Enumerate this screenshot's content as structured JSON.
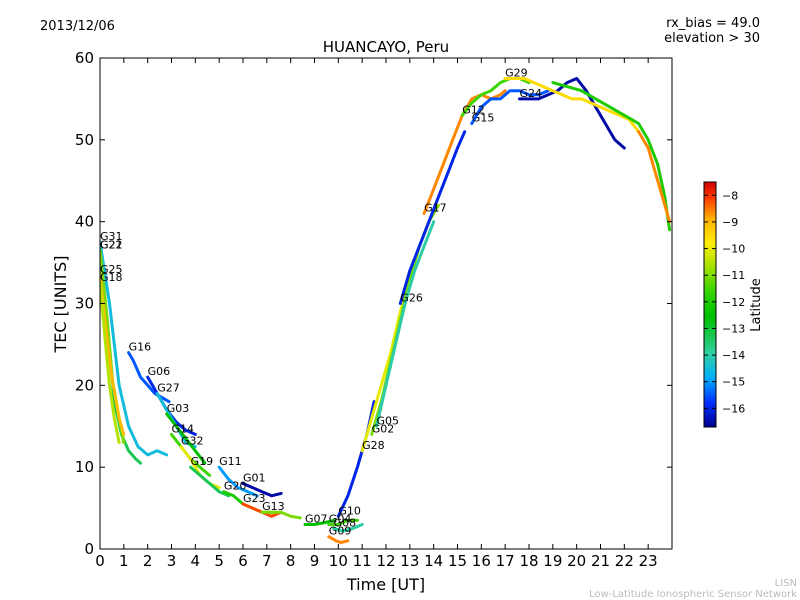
{
  "header": {
    "date": "2013/12/06",
    "meta_line1": "rx_bias = 49.0",
    "meta_line2": "elevation > 30"
  },
  "footer": {
    "line1": "LISN",
    "line2": "Low-Latitude Ionospheric Sensor Network"
  },
  "colors": {
    "background": "#ffffff",
    "axis": "#000000",
    "footer_text": "#bbbbbb",
    "colormap": [
      "#00008f",
      "#0030ff",
      "#00b0ff",
      "#2fcfa0",
      "#00c000",
      "#33d400",
      "#a0e000",
      "#ffee00",
      "#ffb000",
      "#ff4000",
      "#d00000"
    ]
  },
  "chart_data": {
    "type": "line",
    "title": "HUANCAYO, Peru",
    "xlabel": "Time [UT]",
    "ylabel": "TEC [UNITS]",
    "xlim": [
      0,
      24
    ],
    "ylim": [
      0,
      60
    ],
    "xticks": [
      0,
      1,
      2,
      3,
      4,
      5,
      6,
      7,
      8,
      9,
      10,
      11,
      12,
      13,
      14,
      15,
      16,
      17,
      18,
      19,
      20,
      21,
      22,
      23
    ],
    "yticks": [
      0,
      10,
      20,
      30,
      40,
      50,
      60
    ],
    "colorbar": {
      "label": "Latitude",
      "range": [
        -16.7,
        -7.5
      ],
      "ticks": [
        -8,
        -9,
        -10,
        -11,
        -12,
        -13,
        -14,
        -15,
        -16
      ],
      "tick_labels": [
        "−8",
        "−9",
        "−10",
        "−11",
        "−12",
        "−13",
        "−14",
        "−15",
        "−16"
      ]
    },
    "series": [
      {
        "name": "G31",
        "lat": -14.5,
        "points": [
          [
            0,
            37.5
          ],
          [
            0.4,
            30
          ],
          [
            0.8,
            20
          ],
          [
            1.2,
            15
          ],
          [
            1.6,
            12.5
          ],
          [
            2.0,
            11.5
          ],
          [
            2.4,
            12
          ],
          [
            2.8,
            11.5
          ]
        ]
      },
      {
        "name": "G21",
        "lat": -13.5,
        "points": [
          [
            0,
            36.5
          ],
          [
            0.3,
            28
          ],
          [
            0.6,
            18
          ],
          [
            0.9,
            14
          ],
          [
            1.2,
            12
          ],
          [
            1.5,
            11
          ],
          [
            1.7,
            10.5
          ]
        ]
      },
      {
        "name": "G22",
        "lat": -11.5,
        "points": [
          [
            0,
            36.5
          ],
          [
            0.3,
            28
          ],
          [
            0.5,
            21
          ],
          [
            0.8,
            16
          ],
          [
            1.0,
            13
          ]
        ]
      },
      {
        "name": "G25",
        "lat": -9.5,
        "points": [
          [
            0,
            33.5
          ],
          [
            0.2,
            28
          ],
          [
            0.5,
            21
          ],
          [
            0.8,
            16
          ],
          [
            1.0,
            14
          ]
        ]
      },
      {
        "name": "G18",
        "lat": -11.0,
        "points": [
          [
            0,
            32.5
          ],
          [
            0.2,
            26
          ],
          [
            0.4,
            20
          ],
          [
            0.6,
            16
          ],
          [
            0.8,
            13
          ]
        ]
      },
      {
        "name": "G16",
        "lat": -15.5,
        "points": [
          [
            1.2,
            24
          ],
          [
            1.4,
            23
          ],
          [
            1.7,
            21
          ],
          [
            2.0,
            20
          ],
          [
            2.3,
            19
          ],
          [
            2.6,
            18.5
          ],
          [
            2.9,
            18
          ]
        ]
      },
      {
        "name": "G06",
        "lat": -16.0,
        "points": [
          [
            2.0,
            21
          ],
          [
            2.4,
            19
          ],
          [
            2.8,
            17
          ],
          [
            3.2,
            15.5
          ],
          [
            3.6,
            14.5
          ],
          [
            4.0,
            14
          ]
        ]
      },
      {
        "name": "G27",
        "lat": -14.5,
        "points": [
          [
            2.4,
            19
          ],
          [
            2.8,
            17
          ],
          [
            3.2,
            15
          ],
          [
            3.6,
            13
          ],
          [
            4.0,
            12.5
          ]
        ]
      },
      {
        "name": "G03",
        "lat": -13.0,
        "points": [
          [
            2.8,
            16.5
          ],
          [
            3.2,
            15
          ],
          [
            3.6,
            13.5
          ],
          [
            4.0,
            12
          ],
          [
            4.4,
            10.5
          ]
        ]
      },
      {
        "name": "G14",
        "lat": -12.0,
        "points": [
          [
            3.0,
            14
          ],
          [
            3.4,
            12.5
          ],
          [
            3.8,
            11
          ],
          [
            4.2,
            10
          ],
          [
            4.6,
            9
          ]
        ]
      },
      {
        "name": "G32",
        "lat": -10.5,
        "points": [
          [
            3.4,
            12.5
          ],
          [
            3.8,
            11
          ],
          [
            4.2,
            9
          ],
          [
            4.6,
            8
          ],
          [
            5.0,
            7.5
          ]
        ]
      },
      {
        "name": "G19",
        "lat": -13.5,
        "points": [
          [
            3.8,
            10
          ],
          [
            4.2,
            9
          ],
          [
            4.6,
            8
          ],
          [
            5.0,
            7
          ],
          [
            5.4,
            6.5
          ]
        ]
      },
      {
        "name": "G11",
        "lat": -15.0,
        "points": [
          [
            5.0,
            10
          ],
          [
            5.4,
            8.5
          ],
          [
            5.8,
            7.5
          ],
          [
            6.2,
            7
          ],
          [
            6.6,
            6.5
          ]
        ]
      },
      {
        "name": "G01",
        "lat": -16.5,
        "points": [
          [
            6.0,
            8
          ],
          [
            6.4,
            7.5
          ],
          [
            6.8,
            7
          ],
          [
            7.2,
            6.5
          ],
          [
            7.6,
            6.8
          ]
        ]
      },
      {
        "name": "G20",
        "lat": -12.5,
        "points": [
          [
            5.2,
            7
          ],
          [
            5.6,
            6.5
          ],
          [
            6.0,
            5.5
          ],
          [
            6.4,
            5
          ],
          [
            6.8,
            4.5
          ],
          [
            7.2,
            4.5
          ]
        ]
      },
      {
        "name": "G23",
        "lat": -8.5,
        "points": [
          [
            6.0,
            5.5
          ],
          [
            6.4,
            5
          ],
          [
            6.8,
            4.5
          ],
          [
            7.2,
            4
          ],
          [
            7.6,
            4.5
          ]
        ]
      },
      {
        "name": "G13",
        "lat": -11.5,
        "points": [
          [
            6.8,
            4.5
          ],
          [
            7.2,
            4.5
          ],
          [
            7.6,
            4.5
          ],
          [
            8.0,
            4
          ],
          [
            8.4,
            3.8
          ]
        ]
      },
      {
        "name": "G07",
        "lat": -13.0,
        "points": [
          [
            8.6,
            3
          ],
          [
            9.0,
            3
          ],
          [
            9.4,
            3.2
          ],
          [
            9.8,
            3.5
          ]
        ]
      },
      {
        "name": "G04",
        "lat": -12.0,
        "points": [
          [
            9.6,
            3
          ],
          [
            10.0,
            3
          ],
          [
            10.4,
            3.5
          ],
          [
            10.8,
            3.5
          ]
        ]
      },
      {
        "name": "G08",
        "lat": -14.0,
        "points": [
          [
            9.8,
            2.5
          ],
          [
            10.2,
            2.2
          ],
          [
            10.6,
            2.5
          ],
          [
            11.0,
            3
          ]
        ]
      },
      {
        "name": "G09",
        "lat": -9.0,
        "points": [
          [
            9.6,
            1.5
          ],
          [
            9.9,
            1
          ],
          [
            10.1,
            0.8
          ],
          [
            10.4,
            1
          ]
        ]
      },
      {
        "name": "G10",
        "lat": -16.0,
        "points": [
          [
            10.0,
            4
          ],
          [
            10.4,
            6.5
          ],
          [
            10.8,
            10
          ],
          [
            11.2,
            14
          ],
          [
            11.5,
            18
          ]
        ]
      },
      {
        "name": "G28",
        "lat": -10.5,
        "points": [
          [
            11.0,
            12
          ],
          [
            11.4,
            16
          ],
          [
            11.8,
            20
          ],
          [
            12.2,
            24
          ],
          [
            12.6,
            29
          ],
          [
            13.0,
            33
          ],
          [
            13.4,
            37
          ]
        ]
      },
      {
        "name": "G02",
        "lat": -11.5,
        "points": [
          [
            11.4,
            14
          ],
          [
            11.8,
            18
          ],
          [
            12.2,
            23
          ],
          [
            12.6,
            28
          ],
          [
            13.0,
            33
          ],
          [
            13.4,
            37
          ],
          [
            13.8,
            40
          ],
          [
            14.2,
            42
          ]
        ]
      },
      {
        "name": "G05",
        "lat": -14.0,
        "points": [
          [
            11.6,
            15
          ],
          [
            12.0,
            20
          ],
          [
            12.4,
            25
          ],
          [
            12.8,
            30
          ],
          [
            13.2,
            34
          ],
          [
            13.6,
            37
          ],
          [
            14.0,
            40
          ]
        ]
      },
      {
        "name": "G26",
        "lat": -16.0,
        "points": [
          [
            12.6,
            30
          ],
          [
            13.0,
            34
          ],
          [
            13.4,
            37
          ],
          [
            13.8,
            40
          ],
          [
            14.2,
            43
          ],
          [
            14.6,
            46
          ],
          [
            15.0,
            49
          ],
          [
            15.3,
            51
          ]
        ]
      },
      {
        "name": "G17",
        "lat": -9.0,
        "points": [
          [
            13.6,
            41
          ],
          [
            14.0,
            44
          ],
          [
            14.4,
            47
          ],
          [
            14.8,
            50
          ],
          [
            15.2,
            53
          ],
          [
            15.6,
            55
          ],
          [
            16.0,
            55.5
          ],
          [
            16.4,
            55
          ],
          [
            16.8,
            55.5
          ],
          [
            17.0,
            56
          ]
        ]
      },
      {
        "name": "G15",
        "lat": -15.5,
        "points": [
          [
            15.6,
            52
          ],
          [
            16.0,
            54
          ],
          [
            16.4,
            55
          ],
          [
            16.8,
            55
          ],
          [
            17.2,
            56
          ],
          [
            17.6,
            56
          ],
          [
            18.0,
            55.5
          ],
          [
            18.4,
            55.5
          ],
          [
            18.8,
            56
          ]
        ]
      },
      {
        "name": "G12",
        "lat": -12.0,
        "points": [
          [
            15.2,
            53
          ],
          [
            15.6,
            54.5
          ],
          [
            16.0,
            55.5
          ],
          [
            16.4,
            56
          ],
          [
            16.8,
            57
          ],
          [
            17.2,
            57.5
          ],
          [
            17.6,
            57.5
          ],
          [
            18.0,
            57
          ]
        ]
      },
      {
        "name": "G24",
        "lat": -16.5,
        "points": [
          [
            17.6,
            55
          ],
          [
            18.0,
            55
          ],
          [
            18.4,
            55
          ],
          [
            18.8,
            55.5
          ],
          [
            19.2,
            56
          ],
          [
            19.6,
            57
          ],
          [
            20.0,
            57.5
          ],
          [
            20.4,
            56
          ],
          [
            20.8,
            54
          ],
          [
            21.2,
            52
          ],
          [
            21.6,
            50
          ],
          [
            22.0,
            49
          ]
        ]
      },
      {
        "name": "G29",
        "lat": -10.0,
        "points": [
          [
            17.0,
            57.5
          ],
          [
            17.4,
            57.5
          ],
          [
            17.8,
            57.5
          ],
          [
            18.2,
            57
          ],
          [
            18.6,
            56.5
          ],
          [
            19.0,
            56
          ],
          [
            19.4,
            55.5
          ],
          [
            19.8,
            55
          ],
          [
            20.2,
            55
          ],
          [
            20.6,
            54.5
          ],
          [
            21.0,
            54
          ],
          [
            21.4,
            53.5
          ],
          [
            21.8,
            53
          ],
          [
            22.2,
            52.5
          ],
          [
            22.6,
            51
          ]
        ]
      },
      {
        "name": "",
        "lat": -12.5,
        "points": [
          [
            19.0,
            57
          ],
          [
            19.6,
            56.5
          ],
          [
            20.2,
            56
          ],
          [
            20.8,
            55
          ],
          [
            21.4,
            54
          ],
          [
            22.0,
            53
          ],
          [
            22.6,
            52
          ],
          [
            23.0,
            50
          ],
          [
            23.4,
            47
          ],
          [
            23.7,
            43
          ],
          [
            23.9,
            39
          ]
        ]
      },
      {
        "name": "",
        "lat": -9.0,
        "points": [
          [
            22.6,
            51
          ],
          [
            23.0,
            49
          ],
          [
            23.3,
            46
          ],
          [
            23.6,
            43
          ],
          [
            23.9,
            40
          ]
        ]
      }
    ]
  }
}
